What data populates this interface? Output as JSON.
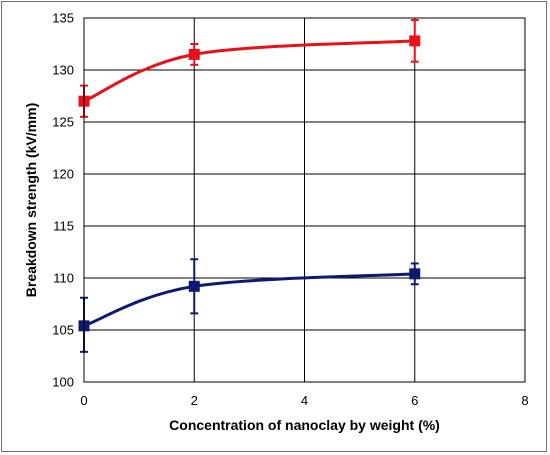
{
  "chart_data": {
    "type": "line",
    "title": "",
    "xlabel": "Concentration of nanoclay by weight (%)",
    "ylabel": "Breakdown strength (kV/mm)",
    "xlim": [
      0,
      8
    ],
    "ylim": [
      100,
      135
    ],
    "x_ticks": [
      0,
      2,
      4,
      6,
      8
    ],
    "y_ticks": [
      100,
      105,
      110,
      115,
      120,
      125,
      130,
      135
    ],
    "grid": true,
    "legend": "none",
    "series": [
      {
        "color": "#e8111a",
        "marker": "square",
        "smooth": true,
        "x": [
          0,
          2,
          6
        ],
        "y": [
          127.0,
          131.5,
          132.8
        ],
        "error_low": [
          1.5,
          1.0,
          2.0
        ],
        "error_high": [
          1.5,
          1.0,
          2.0
        ]
      },
      {
        "color": "#0d1a6f",
        "marker": "square",
        "smooth": true,
        "x": [
          0,
          2,
          6
        ],
        "y": [
          105.4,
          109.2,
          110.4
        ],
        "error_low": [
          2.5,
          2.6,
          1.0
        ],
        "error_high": [
          2.7,
          2.6,
          1.0
        ]
      }
    ]
  }
}
